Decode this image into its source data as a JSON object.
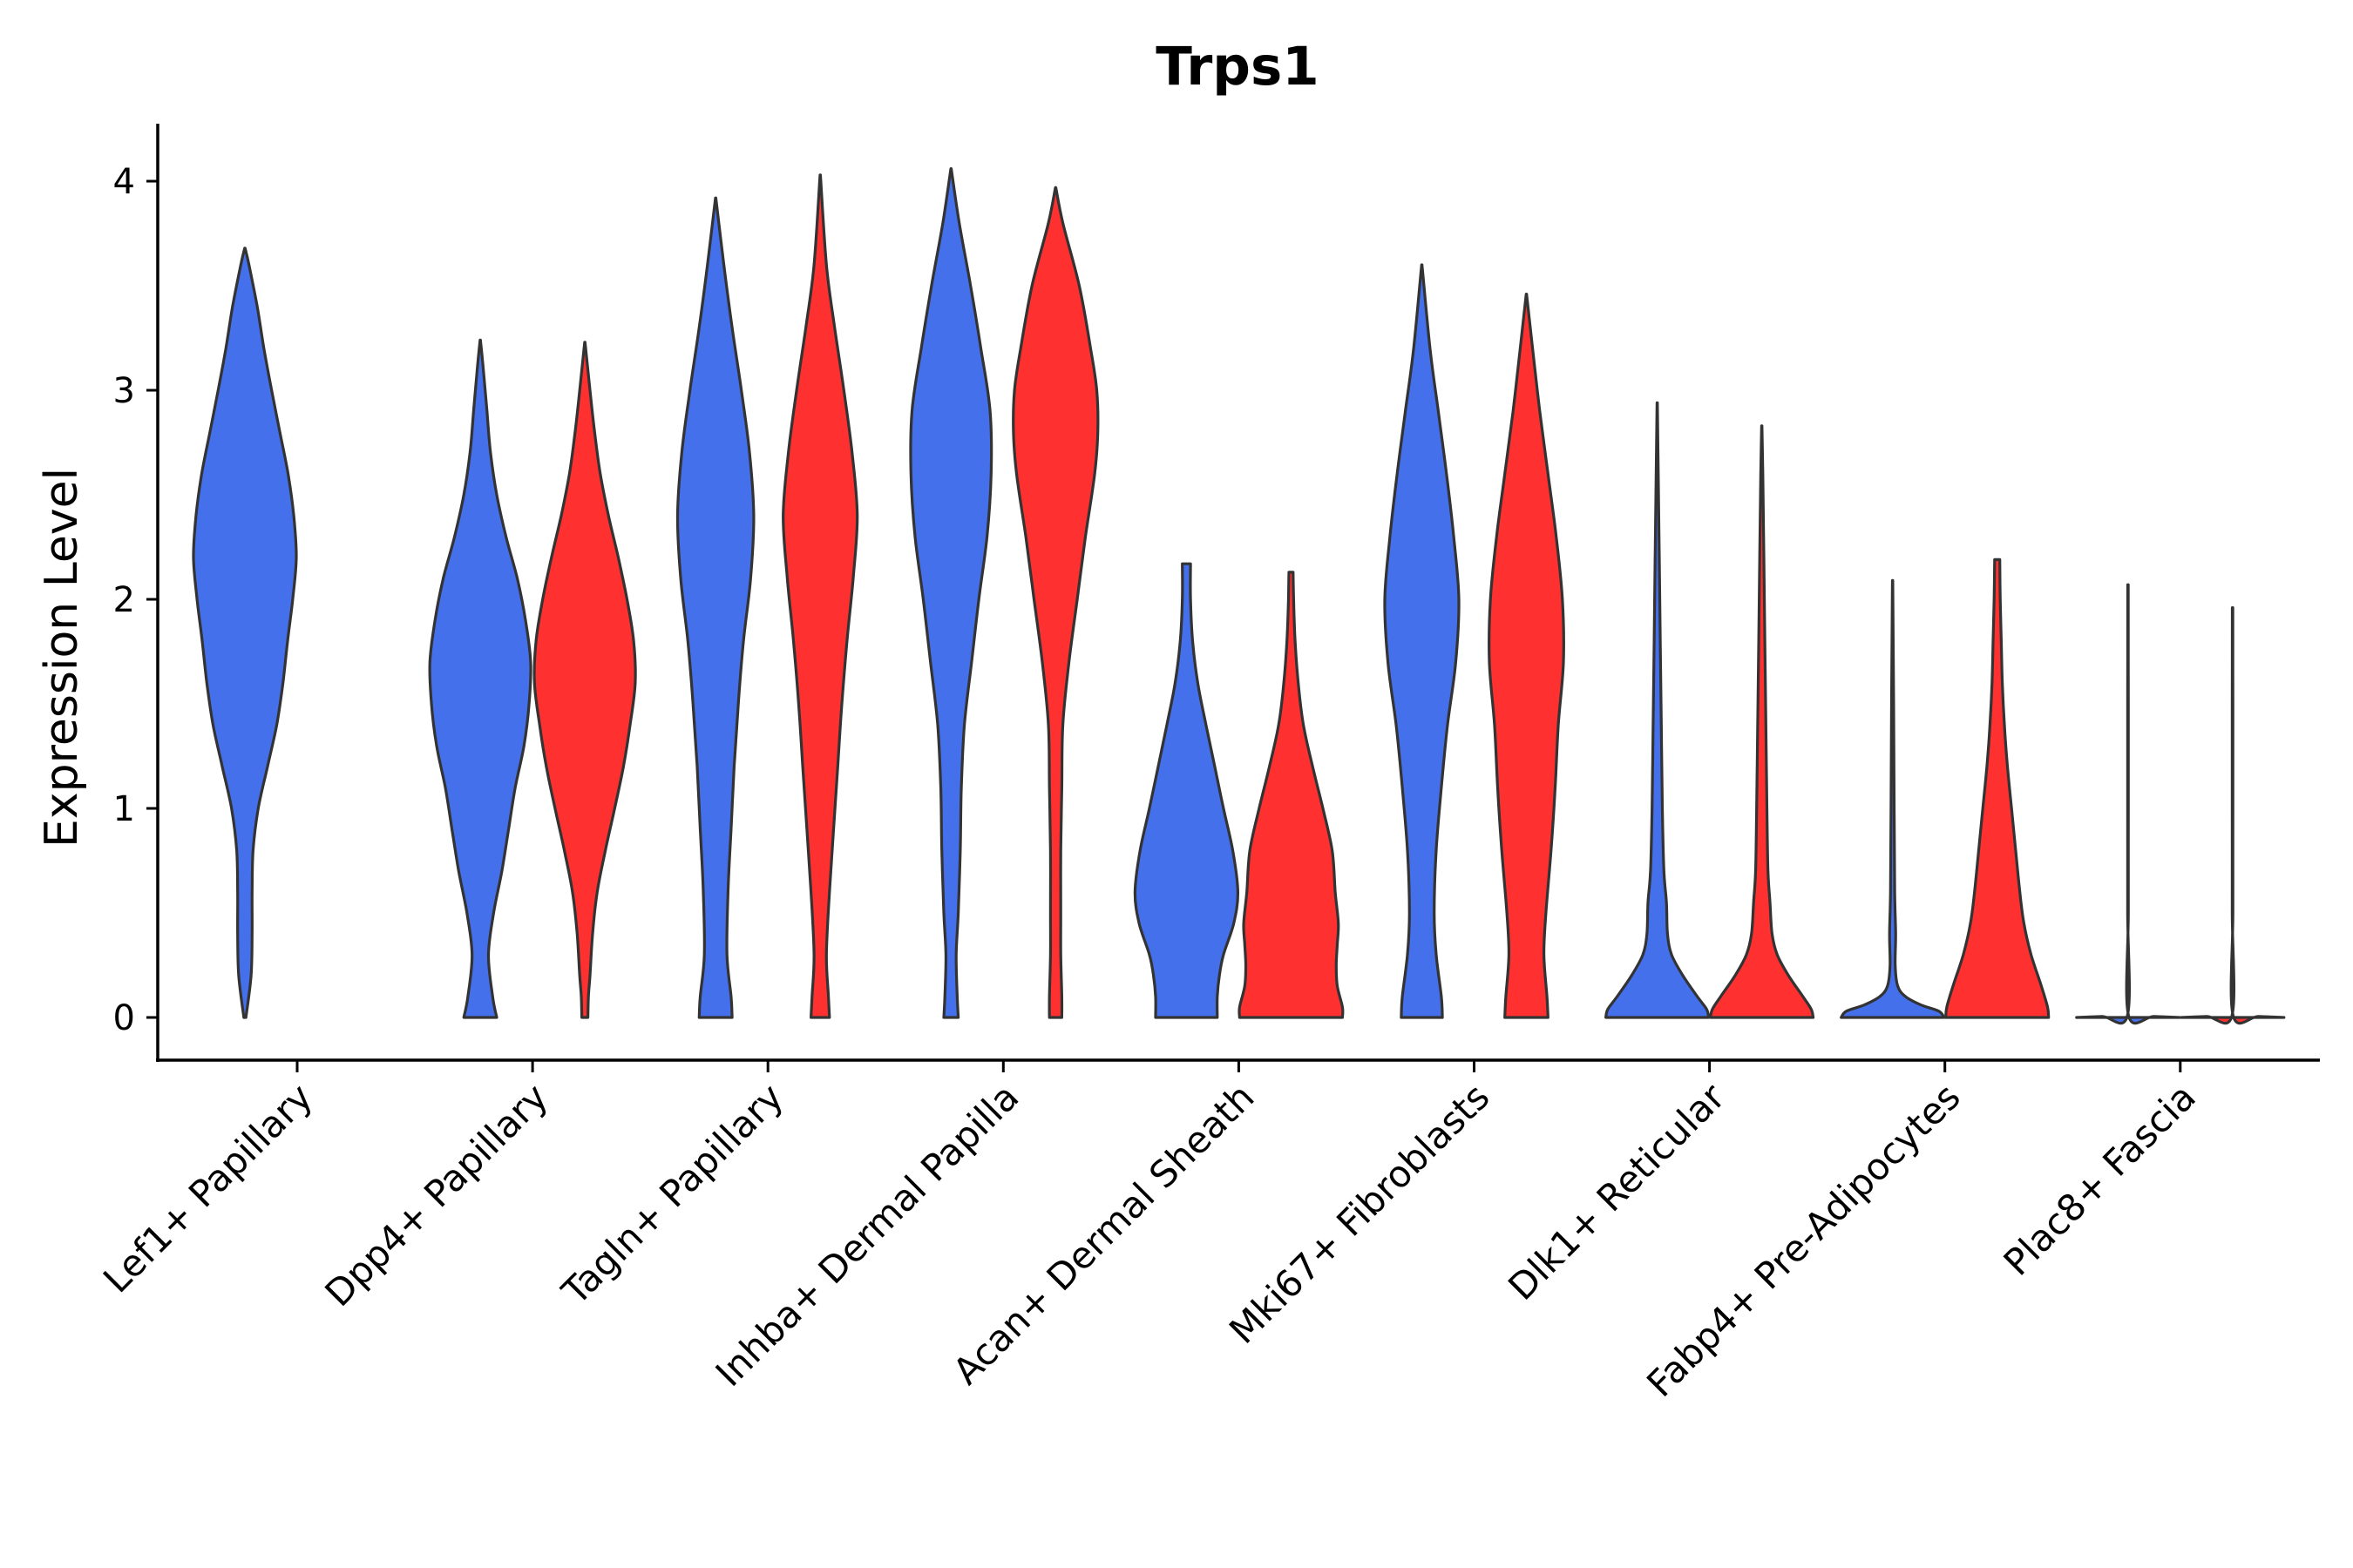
{
  "chart_data": {
    "type": "violin",
    "title": "Trps1",
    "xlabel": "",
    "ylabel": "Expression Level",
    "ylim": [
      -0.2,
      4.28
    ],
    "yticks": [
      0,
      1,
      2,
      3,
      4
    ],
    "grid": false,
    "legend": "none",
    "colors": {
      "group1": "#4570EB",
      "group2": "#FF3030",
      "outline": "#333333"
    },
    "categories": [
      "Lef1+ Papillary",
      "Dpp4+ Papillary",
      "Tagln+ Papillary",
      "Inhba+ Dermal Papilla",
      "Acan+ Dermal Sheath",
      "Mki67+ Fibroblasts",
      "Dlk1+ Reticular",
      "Fabp4+ Pre-Adipocytes",
      "Plac8+ Fascia"
    ],
    "violins": [
      {
        "category": "Lef1+ Papillary",
        "group": "group1",
        "max": 3.68,
        "profile": [
          [
            0,
            0.02
          ],
          [
            0.2,
            0.12
          ],
          [
            0.4,
            0.14
          ],
          [
            0.6,
            0.14
          ],
          [
            0.8,
            0.16
          ],
          [
            1.0,
            0.26
          ],
          [
            1.2,
            0.44
          ],
          [
            1.4,
            0.62
          ],
          [
            1.6,
            0.74
          ],
          [
            1.8,
            0.83
          ],
          [
            2.0,
            0.93
          ],
          [
            2.2,
            1.0
          ],
          [
            2.4,
            0.95
          ],
          [
            2.6,
            0.84
          ],
          [
            2.8,
            0.68
          ],
          [
            3.0,
            0.52
          ],
          [
            3.2,
            0.37
          ],
          [
            3.4,
            0.24
          ],
          [
            3.6,
            0.08
          ],
          [
            3.68,
            0.0
          ]
        ]
      },
      {
        "category": "Dpp4+ Papillary",
        "group": "group1",
        "max": 3.24,
        "profile": [
          [
            0,
            0.32
          ],
          [
            0.1,
            0.24
          ],
          [
            0.3,
            0.16
          ],
          [
            0.5,
            0.26
          ],
          [
            0.7,
            0.42
          ],
          [
            0.9,
            0.55
          ],
          [
            1.1,
            0.68
          ],
          [
            1.3,
            0.85
          ],
          [
            1.5,
            0.95
          ],
          [
            1.7,
            0.98
          ],
          [
            1.9,
            0.88
          ],
          [
            2.1,
            0.72
          ],
          [
            2.3,
            0.5
          ],
          [
            2.5,
            0.32
          ],
          [
            2.7,
            0.2
          ],
          [
            2.9,
            0.13
          ],
          [
            3.1,
            0.06
          ],
          [
            3.24,
            0.0
          ]
        ]
      },
      {
        "category": "Dpp4+ Papillary",
        "group": "group2",
        "max": 3.23,
        "profile": [
          [
            0,
            0.06
          ],
          [
            0.1,
            0.07
          ],
          [
            0.2,
            0.1
          ],
          [
            0.4,
            0.15
          ],
          [
            0.6,
            0.24
          ],
          [
            0.8,
            0.4
          ],
          [
            1.0,
            0.58
          ],
          [
            1.2,
            0.75
          ],
          [
            1.4,
            0.88
          ],
          [
            1.6,
            0.98
          ],
          [
            1.8,
            0.95
          ],
          [
            2.0,
            0.82
          ],
          [
            2.2,
            0.65
          ],
          [
            2.4,
            0.46
          ],
          [
            2.6,
            0.3
          ],
          [
            2.8,
            0.19
          ],
          [
            3.0,
            0.1
          ],
          [
            3.23,
            0.0
          ]
        ]
      },
      {
        "category": "Tagln+ Papillary",
        "group": "group1",
        "max": 3.92,
        "profile": [
          [
            0,
            0.32
          ],
          [
            0.1,
            0.3
          ],
          [
            0.3,
            0.22
          ],
          [
            0.6,
            0.24
          ],
          [
            0.9,
            0.3
          ],
          [
            1.2,
            0.36
          ],
          [
            1.5,
            0.44
          ],
          [
            1.8,
            0.54
          ],
          [
            2.1,
            0.68
          ],
          [
            2.4,
            0.74
          ],
          [
            2.7,
            0.66
          ],
          [
            3.0,
            0.5
          ],
          [
            3.3,
            0.32
          ],
          [
            3.6,
            0.16
          ],
          [
            3.92,
            0.0
          ]
        ]
      },
      {
        "category": "Tagln+ Papillary",
        "group": "group2",
        "max": 4.03,
        "profile": [
          [
            0,
            0.18
          ],
          [
            0.1,
            0.16
          ],
          [
            0.3,
            0.12
          ],
          [
            0.6,
            0.18
          ],
          [
            0.9,
            0.26
          ],
          [
            1.2,
            0.34
          ],
          [
            1.5,
            0.42
          ],
          [
            1.8,
            0.52
          ],
          [
            2.1,
            0.64
          ],
          [
            2.4,
            0.72
          ],
          [
            2.7,
            0.62
          ],
          [
            3.0,
            0.46
          ],
          [
            3.3,
            0.28
          ],
          [
            3.6,
            0.12
          ],
          [
            4.03,
            0.0
          ]
        ]
      },
      {
        "category": "Inhba+ Dermal Papilla",
        "group": "group1",
        "max": 4.06,
        "profile": [
          [
            0,
            0.14
          ],
          [
            0.1,
            0.12
          ],
          [
            0.3,
            0.1
          ],
          [
            0.5,
            0.14
          ],
          [
            0.8,
            0.18
          ],
          [
            1.1,
            0.2
          ],
          [
            1.4,
            0.26
          ],
          [
            1.7,
            0.4
          ],
          [
            2.0,
            0.54
          ],
          [
            2.3,
            0.7
          ],
          [
            2.6,
            0.78
          ],
          [
            2.9,
            0.76
          ],
          [
            3.2,
            0.58
          ],
          [
            3.5,
            0.38
          ],
          [
            3.8,
            0.16
          ],
          [
            4.06,
            0.0
          ]
        ]
      },
      {
        "category": "Inhba+ Dermal Papilla",
        "group": "group2",
        "max": 3.97,
        "profile": [
          [
            0,
            0.12
          ],
          [
            0.1,
            0.12
          ],
          [
            0.3,
            0.1
          ],
          [
            0.5,
            0.1
          ],
          [
            0.8,
            0.1
          ],
          [
            1.1,
            0.12
          ],
          [
            1.4,
            0.14
          ],
          [
            1.7,
            0.26
          ],
          [
            2.0,
            0.42
          ],
          [
            2.3,
            0.58
          ],
          [
            2.6,
            0.76
          ],
          [
            2.8,
            0.82
          ],
          [
            3.0,
            0.8
          ],
          [
            3.2,
            0.68
          ],
          [
            3.5,
            0.46
          ],
          [
            3.8,
            0.14
          ],
          [
            3.97,
            0.0
          ]
        ]
      },
      {
        "category": "Acan+ Dermal Sheath",
        "group": "group1",
        "max": 2.17,
        "profile": [
          [
            0,
            0.6
          ],
          [
            0.1,
            0.6
          ],
          [
            0.2,
            0.64
          ],
          [
            0.3,
            0.72
          ],
          [
            0.45,
            0.92
          ],
          [
            0.6,
            1.0
          ],
          [
            0.8,
            0.9
          ],
          [
            1.0,
            0.72
          ],
          [
            1.2,
            0.55
          ],
          [
            1.4,
            0.38
          ],
          [
            1.6,
            0.22
          ],
          [
            1.8,
            0.12
          ],
          [
            2.0,
            0.08
          ],
          [
            2.17,
            0.08
          ]
        ]
      },
      {
        "category": "Acan+ Dermal Sheath",
        "group": "group2",
        "max": 2.13,
        "profile": [
          [
            0,
            1.0
          ],
          [
            0.05,
            1.0
          ],
          [
            0.15,
            0.9
          ],
          [
            0.25,
            0.88
          ],
          [
            0.35,
            0.9
          ],
          [
            0.45,
            0.92
          ],
          [
            0.6,
            0.86
          ],
          [
            0.8,
            0.8
          ],
          [
            1.0,
            0.62
          ],
          [
            1.2,
            0.42
          ],
          [
            1.4,
            0.24
          ],
          [
            1.6,
            0.14
          ],
          [
            1.8,
            0.08
          ],
          [
            2.0,
            0.05
          ],
          [
            2.13,
            0.04
          ]
        ]
      },
      {
        "category": "Mki67+ Fibroblasts",
        "group": "group1",
        "max": 3.6,
        "profile": [
          [
            0,
            0.4
          ],
          [
            0.1,
            0.38
          ],
          [
            0.3,
            0.28
          ],
          [
            0.5,
            0.24
          ],
          [
            0.8,
            0.28
          ],
          [
            1.1,
            0.38
          ],
          [
            1.4,
            0.5
          ],
          [
            1.7,
            0.66
          ],
          [
            2.0,
            0.72
          ],
          [
            2.3,
            0.62
          ],
          [
            2.6,
            0.48
          ],
          [
            2.9,
            0.32
          ],
          [
            3.2,
            0.16
          ],
          [
            3.6,
            0.0
          ]
        ]
      },
      {
        "category": "Mki67+ Fibroblasts",
        "group": "group2",
        "max": 3.46,
        "profile": [
          [
            0,
            0.42
          ],
          [
            0.1,
            0.4
          ],
          [
            0.3,
            0.34
          ],
          [
            0.5,
            0.38
          ],
          [
            0.8,
            0.48
          ],
          [
            1.1,
            0.56
          ],
          [
            1.4,
            0.62
          ],
          [
            1.7,
            0.72
          ],
          [
            2.0,
            0.7
          ],
          [
            2.3,
            0.58
          ],
          [
            2.6,
            0.42
          ],
          [
            2.9,
            0.26
          ],
          [
            3.2,
            0.12
          ],
          [
            3.46,
            0.0
          ]
        ]
      },
      {
        "category": "Dlk1+ Reticular",
        "group": "group1",
        "max": 2.94,
        "profile": [
          [
            0,
            1.0
          ],
          [
            0.04,
            0.96
          ],
          [
            0.1,
            0.78
          ],
          [
            0.2,
            0.5
          ],
          [
            0.3,
            0.28
          ],
          [
            0.4,
            0.2
          ],
          [
            0.55,
            0.18
          ],
          [
            0.7,
            0.13
          ],
          [
            1.0,
            0.1
          ],
          [
            1.4,
            0.08
          ],
          [
            1.8,
            0.06
          ],
          [
            2.2,
            0.04
          ],
          [
            2.6,
            0.02
          ],
          [
            2.94,
            0.0
          ]
        ]
      },
      {
        "category": "Dlk1+ Reticular",
        "group": "group2",
        "max": 2.83,
        "profile": [
          [
            0,
            1.0
          ],
          [
            0.04,
            0.96
          ],
          [
            0.1,
            0.8
          ],
          [
            0.2,
            0.52
          ],
          [
            0.3,
            0.3
          ],
          [
            0.4,
            0.2
          ],
          [
            0.55,
            0.16
          ],
          [
            0.7,
            0.12
          ],
          [
            1.0,
            0.1
          ],
          [
            1.4,
            0.08
          ],
          [
            1.8,
            0.06
          ],
          [
            2.2,
            0.04
          ],
          [
            2.6,
            0.02
          ],
          [
            2.83,
            0.0
          ]
        ]
      },
      {
        "category": "Fabp4+ Pre-Adipocytes",
        "group": "group1",
        "max": 2.09,
        "profile": [
          [
            0,
            1.0
          ],
          [
            0.03,
            0.9
          ],
          [
            0.06,
            0.55
          ],
          [
            0.1,
            0.25
          ],
          [
            0.15,
            0.1
          ],
          [
            0.25,
            0.05
          ],
          [
            0.4,
            0.06
          ],
          [
            0.6,
            0.04
          ],
          [
            1.0,
            0.03
          ],
          [
            1.5,
            0.02
          ],
          [
            2.09,
            0.0
          ]
        ]
      },
      {
        "category": "Fabp4+ Pre-Adipocytes",
        "group": "group2",
        "max": 2.19,
        "profile": [
          [
            0,
            1.0
          ],
          [
            0.05,
            0.98
          ],
          [
            0.15,
            0.86
          ],
          [
            0.3,
            0.66
          ],
          [
            0.45,
            0.52
          ],
          [
            0.6,
            0.44
          ],
          [
            0.8,
            0.36
          ],
          [
            1.0,
            0.28
          ],
          [
            1.2,
            0.2
          ],
          [
            1.4,
            0.14
          ],
          [
            1.6,
            0.1
          ],
          [
            1.8,
            0.08
          ],
          [
            2.0,
            0.06
          ],
          [
            2.19,
            0.05
          ]
        ]
      },
      {
        "category": "Plac8+ Fascia",
        "group": "group1",
        "max": 2.07,
        "profile": [
          [
            0,
            1.0
          ],
          [
            0.005,
            0.5
          ],
          [
            0.01,
            0.01
          ],
          [
            0.5,
            0.006
          ],
          [
            1.0,
            0.006
          ],
          [
            1.5,
            0.006
          ],
          [
            2.07,
            0.005
          ]
        ]
      },
      {
        "category": "Plac8+ Fascia",
        "group": "group2",
        "max": 1.96,
        "profile": [
          [
            0,
            1.0
          ],
          [
            0.005,
            0.5
          ],
          [
            0.01,
            0.01
          ],
          [
            0.5,
            0.006
          ],
          [
            1.0,
            0.006
          ],
          [
            1.5,
            0.006
          ],
          [
            1.96,
            0.005
          ]
        ]
      }
    ]
  }
}
